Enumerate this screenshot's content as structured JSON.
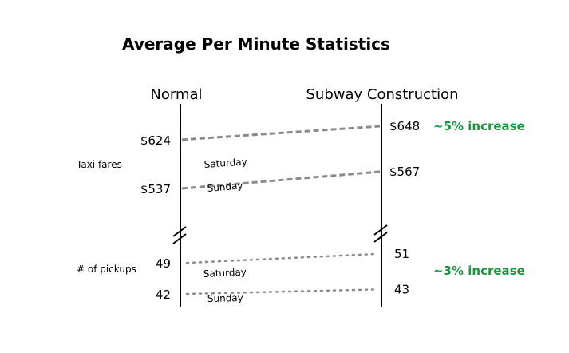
{
  "chart_data": {
    "type": "slope",
    "title": "Average Per Minute Statistics",
    "columns": [
      "Normal",
      "Subway Construction"
    ],
    "accent_color": "#1a9641",
    "line_color": "#8a8a8a",
    "groups": [
      {
        "label": "Taxi fares",
        "line_style": "dashed",
        "annotation": "~5% increase",
        "series": [
          {
            "name": "Saturday",
            "values": [
              624,
              648
            ],
            "labels": [
              "$624",
              "$648"
            ]
          },
          {
            "name": "Sunday",
            "values": [
              537,
              567
            ],
            "labels": [
              "$537",
              "$567"
            ]
          }
        ]
      },
      {
        "label": "# of pickups",
        "line_style": "dotted",
        "annotation": "~3% increase",
        "series": [
          {
            "name": "Saturday",
            "values": [
              49,
              51
            ],
            "labels": [
              "49",
              "51"
            ]
          },
          {
            "name": "Sunday",
            "values": [
              42,
              43
            ],
            "labels": [
              "42",
              "43"
            ]
          }
        ]
      }
    ]
  }
}
